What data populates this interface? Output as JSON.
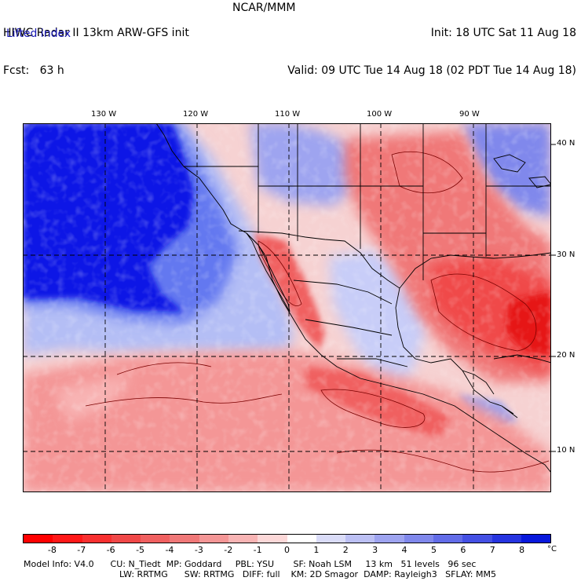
{
  "header": {
    "line1_left": "HIWC Radar II 13km ARW-GFS init",
    "line1_mid": "NCAR/MMM",
    "line1_right": "Init: 18 UTC Sat 11 Aug 18",
    "line2_left": "Fcst:   63 h",
    "line2_right": "Valid: 09 UTC Tue 14 Aug 18 (02 PDT Tue 14 Aug 18)"
  },
  "field_label": "Lifted index",
  "map": {
    "longitude_labels": [
      "130 W",
      "120 W",
      "110 W",
      "100 W",
      "90 W"
    ],
    "latitude_labels": [
      "40 N",
      "30 N",
      "20 N",
      "10 N"
    ],
    "colors": {
      "ocean_strong_blue": "#0a14e6",
      "moderate_blue": "#6478f0",
      "light_blue": "#b4bef5",
      "light_red": "#f5a0a0",
      "moderate_red": "#f06464",
      "strong_red": "#e61414",
      "border_line": "#000000",
      "contour_line": "#7a0000"
    }
  },
  "colorbar": {
    "ticks": [
      "-8",
      "-7",
      "-6",
      "-5",
      "-4",
      "-3",
      "-2",
      "-1",
      "0",
      "1",
      "2",
      "3",
      "4",
      "5",
      "6",
      "7",
      "8"
    ],
    "unit": "°C",
    "colors": [
      "#ff0000",
      "#ff1818",
      "#f83030",
      "#f04848",
      "#f06060",
      "#f07878",
      "#f49696",
      "#f8b4b4",
      "#fcd8d8",
      "#ffffff",
      "#dadcf8",
      "#bcc0f4",
      "#9ea4f0",
      "#8088ec",
      "#626ce8",
      "#4450e4",
      "#2634e0",
      "#0818dc"
    ]
  },
  "footer": {
    "line1": "Model Info: V4.0      CU: N_Tiedt  MP: Goddard     PBL: YSU       SF: Noah LSM     13 km   51 levels   96 sec",
    "line2": "LW: RRTMG      SW: RRTMG   DIFF: full    KM: 2D Smagor  DAMP: Rayleigh3   SFLAY: MM5"
  }
}
